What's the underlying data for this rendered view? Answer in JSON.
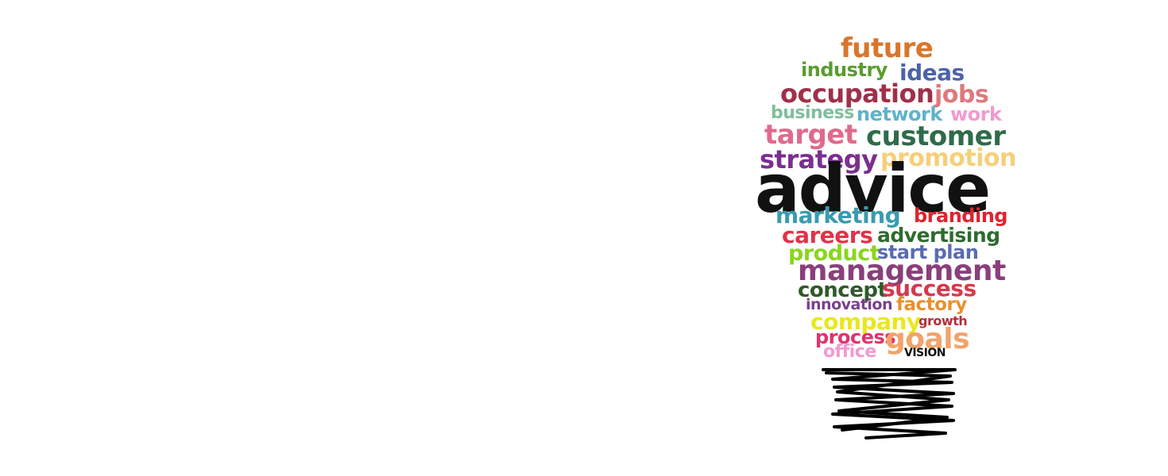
{
  "words": [
    {
      "id": "future",
      "text": "future",
      "color": "#d9762b"
    },
    {
      "id": "industry",
      "text": "industry",
      "color": "#5a9c2e"
    },
    {
      "id": "ideas",
      "text": "ideas",
      "color": "#4d63a8"
    },
    {
      "id": "occupation",
      "text": "occupation",
      "color": "#a0304a"
    },
    {
      "id": "jobs",
      "text": "jobs",
      "color": "#e0787c"
    },
    {
      "id": "business",
      "text": "business",
      "color": "#7fbf9a"
    },
    {
      "id": "network",
      "text": "network",
      "color": "#5fb3c9"
    },
    {
      "id": "work",
      "text": "work",
      "color": "#f29ad0"
    },
    {
      "id": "target",
      "text": "target",
      "color": "#e06a8c"
    },
    {
      "id": "customer",
      "text": "customer",
      "color": "#2f6b4a"
    },
    {
      "id": "strategy",
      "text": "strategy",
      "color": "#7b2f8f"
    },
    {
      "id": "promotion",
      "text": "promotion",
      "color": "#f6cf7a"
    },
    {
      "id": "advice",
      "text": "advice",
      "color": "#111111"
    },
    {
      "id": "marketing",
      "text": "marketing",
      "color": "#3a9bb0"
    },
    {
      "id": "branding",
      "text": "branding",
      "color": "#e0232f"
    },
    {
      "id": "careers",
      "text": "careers",
      "color": "#e0334a"
    },
    {
      "id": "advertising",
      "text": "advertising",
      "color": "#2e6b2e"
    },
    {
      "id": "product",
      "text": "product",
      "color": "#8ad61e"
    },
    {
      "id": "start-plan",
      "text": "start plan",
      "color": "#5a6bb0"
    },
    {
      "id": "management",
      "text": "management",
      "color": "#8a3f7c"
    },
    {
      "id": "concept",
      "text": "concept",
      "color": "#2f5a2a"
    },
    {
      "id": "success",
      "text": "success",
      "color": "#d43a4e"
    },
    {
      "id": "innovation",
      "text": "innovation",
      "color": "#7a3f8f"
    },
    {
      "id": "factory",
      "text": "factory",
      "color": "#e8902e"
    },
    {
      "id": "company",
      "text": "company",
      "color": "#e8e81e"
    },
    {
      "id": "growth",
      "text": "growth",
      "color": "#b0303a"
    },
    {
      "id": "process",
      "text": "process",
      "color": "#e0336a"
    },
    {
      "id": "goals",
      "text": "goals",
      "color": "#f2a36a"
    },
    {
      "id": "office",
      "text": "office",
      "color": "#f29ad0"
    },
    {
      "id": "vision",
      "text": "VISION",
      "color": "#111111"
    }
  ]
}
